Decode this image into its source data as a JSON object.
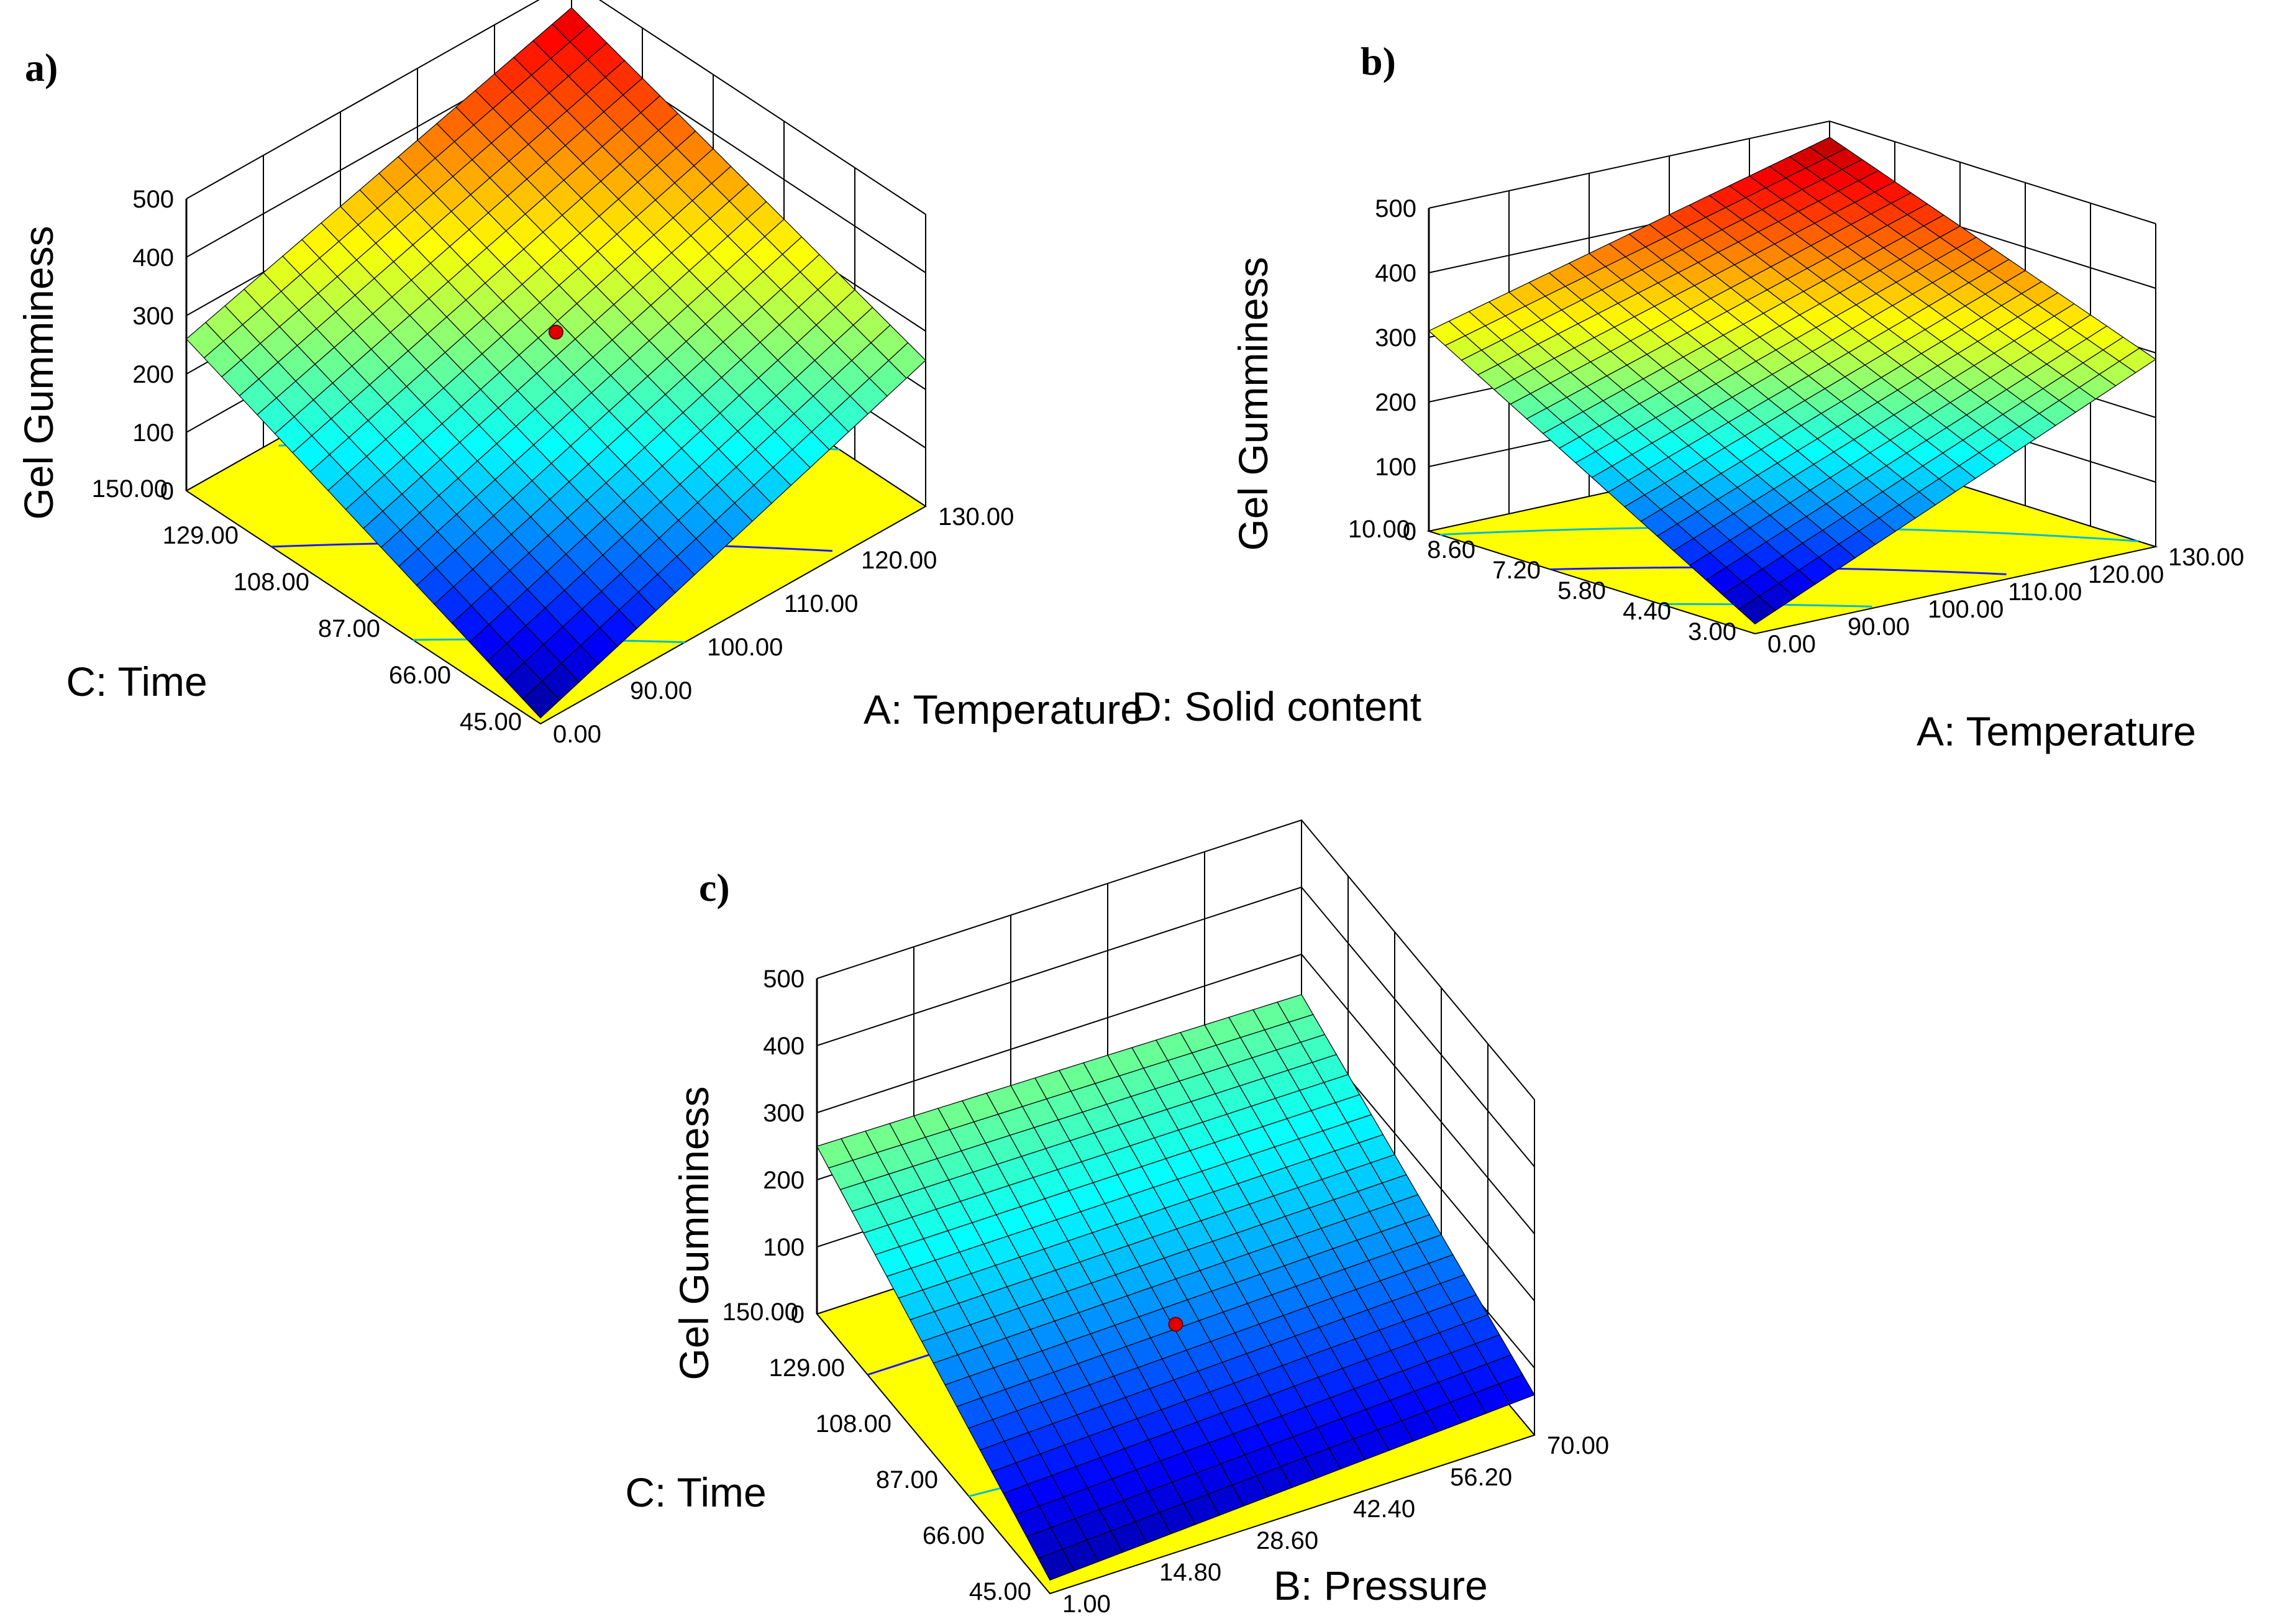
{
  "chart_data": [
    {
      "type": "surface3d",
      "panel_label": "a)",
      "zlabel": "Gel Gumminess",
      "xlabel": "A: Temperature",
      "ylabel": "C: Time",
      "x_ticks": [
        "0.00",
        "90.00",
        "100.00",
        "110.00",
        "120.00",
        "130.00"
      ],
      "y_ticks": [
        "45.00",
        "66.00",
        "87.00",
        "108.00",
        "129.00",
        "150.00"
      ],
      "z_ticks": [
        "0",
        "100",
        "200",
        "300",
        "400",
        "500"
      ],
      "zlim": [
        0,
        500
      ],
      "surface_corners": {
        "x_low_y_low": 10,
        "x_high_y_low": 250,
        "x_low_y_high": 260,
        "x_high_y_high": 455
      },
      "design_point_value": 285,
      "colormap": "jet"
    },
    {
      "type": "surface3d",
      "panel_label": "b)",
      "zlabel": "Gel Gumminess",
      "xlabel": "A: Temperature",
      "ylabel": "D: Solid content",
      "x_ticks": [
        "0.00",
        "90.00",
        "100.00",
        "110.00",
        "120.00",
        "130.00"
      ],
      "y_ticks": [
        "3.00",
        "4.40",
        "5.80",
        "7.20",
        "8.60",
        "10.00"
      ],
      "z_ticks": [
        "0",
        "100",
        "200",
        "300",
        "400",
        "500"
      ],
      "zlim": [
        0,
        500
      ],
      "surface_corners": {
        "x_low_y_low": 15,
        "x_high_y_low": 290,
        "x_low_y_high": 310,
        "x_high_y_high": 475
      },
      "design_point_value": null,
      "colormap": "jet"
    },
    {
      "type": "surface3d",
      "panel_label": "c)",
      "zlabel": "Gel Gumminess",
      "xlabel": "B: Pressure",
      "ylabel": "C: Time",
      "x_ticks": [
        "1.00",
        "14.80",
        "28.60",
        "42.40",
        "56.20",
        "70.00"
      ],
      "y_ticks": [
        "45.00",
        "66.00",
        "87.00",
        "108.00",
        "129.00",
        "150.00"
      ],
      "z_ticks": [
        "0",
        "100",
        "200",
        "300",
        "400",
        "500"
      ],
      "zlim": [
        0,
        500
      ],
      "surface_corners": {
        "x_low_y_low": 20,
        "x_high_y_low": 60,
        "x_low_y_high": 250,
        "x_high_y_high": 240
      },
      "design_point_value": 75,
      "colormap": "jet"
    }
  ]
}
